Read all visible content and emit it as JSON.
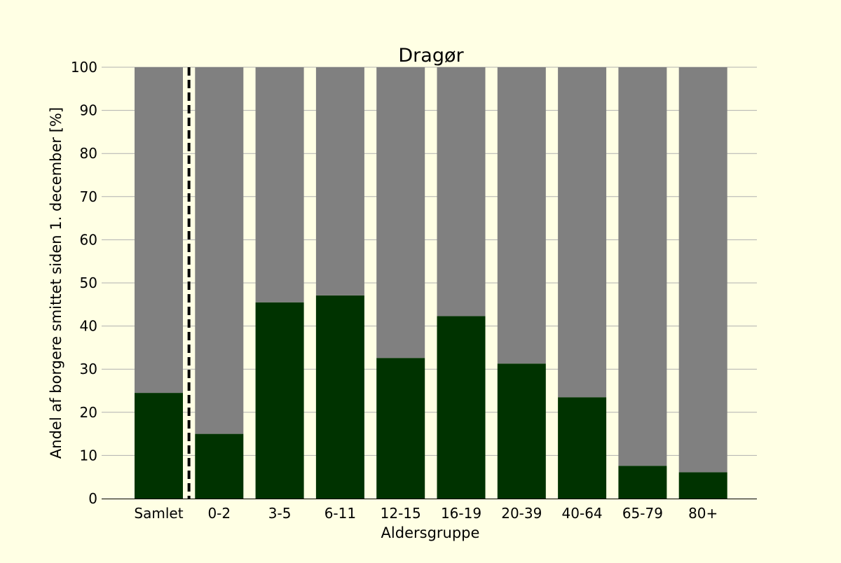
{
  "chart_data": {
    "type": "bar",
    "stacked": true,
    "title": "Dragør",
    "xlabel": "Aldersgruppe",
    "ylabel": "Andel af borgere smittet siden 1. december [%]",
    "categories": [
      "Samlet",
      "0-2",
      "3-5",
      "6-11",
      "12-15",
      "16-19",
      "20-39",
      "40-64",
      "65-79",
      "80+"
    ],
    "series": [
      {
        "values": [
          24.5,
          15.0,
          45.5,
          47.1,
          32.6,
          42.3,
          31.3,
          23.5,
          7.6,
          6.1
        ],
        "color": "#003300"
      },
      {
        "values": [
          75.5,
          85.0,
          54.5,
          52.9,
          67.4,
          57.7,
          68.7,
          76.5,
          92.4,
          93.9
        ],
        "color": "#808080"
      }
    ],
    "ylim": [
      0,
      100
    ],
    "yticks": [
      0,
      10,
      20,
      30,
      40,
      50,
      60,
      70,
      80,
      90,
      100
    ],
    "grid": "horizontal",
    "separator": "dashed line between Samlet and 0-2",
    "background": "#ffffe4"
  }
}
